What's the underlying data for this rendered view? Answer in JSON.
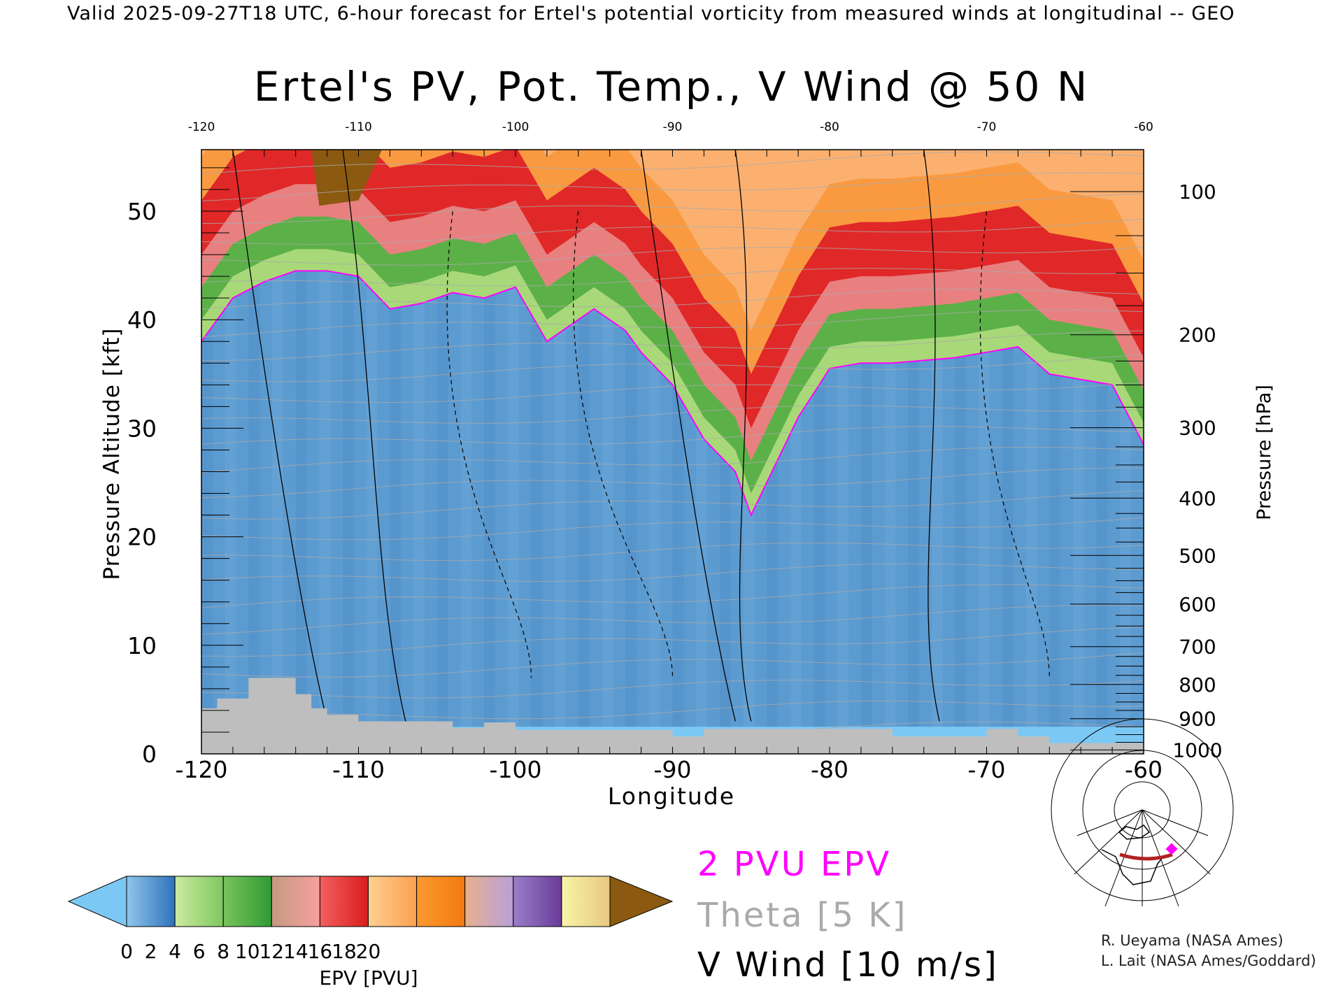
{
  "header": {
    "top_title": "Valid 2025-09-27T18 UTC, 6-hour forecast for Ertel's potential vorticity from measured winds at longitudinal -- GEO",
    "main_title": "Ertel's PV, Pot. Temp., V Wind @ 50 N"
  },
  "chart_data": {
    "type": "heatmap",
    "title": "Ertel's PV, Pot. Temp., V Wind @ 50 N",
    "xlabel": "Longitude",
    "ylabel": "Pressure Altitude [kft]",
    "y2label": "Pressure [hPa]",
    "xlim": [
      -120,
      -60
    ],
    "ylim": [
      0,
      55.7
    ],
    "x_ticks": [
      "-120",
      "-110",
      "-100",
      "-90",
      "-80",
      "-70",
      "-60"
    ],
    "x_tick_values": [
      -120,
      -110,
      -100,
      -90,
      -80,
      -70,
      -60
    ],
    "y_ticks": [
      "0",
      "10",
      "20",
      "30",
      "40",
      "50"
    ],
    "y_tick_values": [
      0,
      10,
      20,
      30,
      40,
      50
    ],
    "pressure_ticks": [
      "100",
      "200",
      "300",
      "400",
      "500",
      "600",
      "700",
      "800",
      "900",
      "1000"
    ],
    "pressure_tick_values": [
      100,
      200,
      300,
      400,
      500,
      600,
      700,
      800,
      900,
      1000
    ],
    "tropopause_2pvu": {
      "lon": [
        -120,
        -118,
        -116,
        -114,
        -112,
        -110,
        -108,
        -106,
        -104,
        -102,
        -100,
        -98,
        -96,
        -95,
        -93,
        -92,
        -90,
        -88,
        -86,
        -85,
        -84,
        -82,
        -80,
        -78,
        -76,
        -72,
        -70,
        -68,
        -66,
        -64,
        -62,
        -60
      ],
      "kft": [
        38,
        42,
        43.5,
        44.5,
        44.5,
        44,
        41,
        41.5,
        42.5,
        42,
        43,
        38,
        40,
        41,
        39,
        37,
        34,
        29,
        26,
        22,
        25,
        31,
        35.5,
        36,
        36,
        36.5,
        37,
        37.5,
        35,
        34.5,
        34,
        28.5
      ]
    },
    "terrain_kft": {
      "lon": [
        -120,
        -119,
        -117,
        -114,
        -113,
        -112,
        -110,
        -105,
        -104,
        -102,
        -100,
        -90,
        -88,
        -76,
        -74,
        -70,
        -68,
        -66,
        -60
      ],
      "kft": [
        4.2,
        5.1,
        7.0,
        5.5,
        4.2,
        3.6,
        3.0,
        3.0,
        2.4,
        2.9,
        2.2,
        1.6,
        2.3,
        1.6,
        1.6,
        2.3,
        1.6,
        1.0,
        0.8
      ]
    },
    "colorbar": {
      "label": "EPV [PVU]",
      "ticks": [
        "0",
        "2",
        "4",
        "6",
        "8",
        "10",
        "12",
        "14",
        "16",
        "18",
        "20"
      ],
      "range": [
        0,
        20
      ],
      "under_color": "#7cc8f5",
      "over_color": "#8b5a10",
      "segments": [
        [
          "#8fc6ea",
          "#2f72bc"
        ],
        [
          "#cdeaa0",
          "#7fc860"
        ],
        [
          "#7ac35a",
          "#2f9a36"
        ],
        [
          "#c49a80",
          "#f7a0a0"
        ],
        [
          "#f46060",
          "#d81d1d"
        ],
        [
          "#fdd090",
          "#fba050"
        ],
        [
          "#fa9a30",
          "#f27a10"
        ],
        [
          "#e8b090",
          "#b8a0d8"
        ],
        [
          "#9a80c8",
          "#6a3a98"
        ],
        [
          "#f8f4a8",
          "#e8c880"
        ],
        [
          "#d8a860",
          "#8b5a10"
        ]
      ]
    }
  },
  "legend": {
    "pv": "2 PVU EPV",
    "theta": "Theta [5 K]",
    "vwind": "V Wind [10 m/s]",
    "pv_color": "#ff00ff",
    "theta_color": "#aaaaaa",
    "vwind_color": "#000000"
  },
  "credits": {
    "line1": "R. Ueyama (NASA Ames)",
    "line2": "L. Lait (NASA Ames/Goddard)"
  },
  "inset_map": {
    "track_color": "#b22222",
    "marker_color": "#ff00ff"
  }
}
